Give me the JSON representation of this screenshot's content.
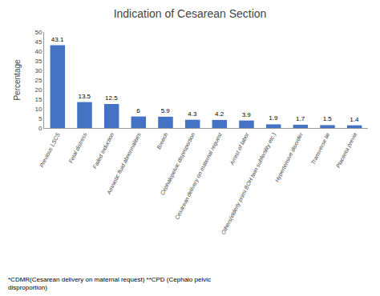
{
  "chart_data": {
    "type": "bar",
    "title": "Indication of Cesarean Section",
    "ylabel": "Percentage",
    "categories": [
      "Previous LSCS",
      "Fetal distress",
      "Failed Induction",
      "Amniotic fluid abnormalities",
      "Breech",
      "Cephalopelvic disproportion",
      "Cesarean delivery on maternal request",
      "Arrest of labor",
      "Others(elderly primi BOH twin subfertility etc.)",
      "Hypertensive disorder",
      "Transverse lie",
      "Placenta previa"
    ],
    "values": [
      43.1,
      13.5,
      12.5,
      6.0,
      5.9,
      4.3,
      4.2,
      3.9,
      1.9,
      1.7,
      1.5,
      1.4
    ],
    "color": "#4472C4",
    "ylim": [
      0,
      50
    ],
    "yticks": [
      0,
      5,
      10,
      15,
      20,
      25,
      30,
      35,
      40,
      45,
      50
    ],
    "grid": false,
    "data_labels": true,
    "annotations": [
      "*CDMR(Cesarean delivery on maternal request) **CPD (Cephalo pelvic\ndisproportion)"
    ]
  }
}
